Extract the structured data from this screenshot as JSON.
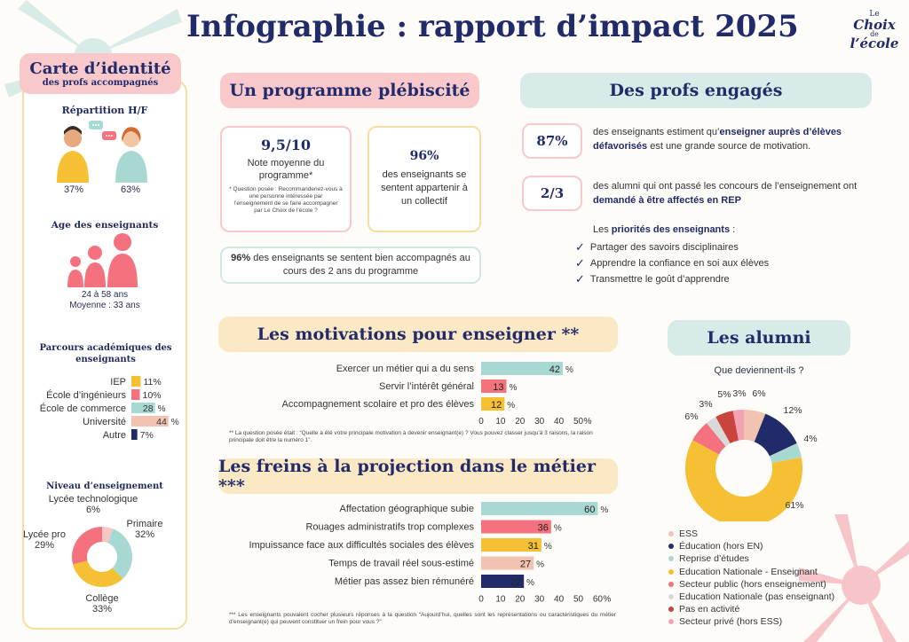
{
  "title": "Infographie : rapport d’impact 2025",
  "logo": {
    "line1": "Le",
    "line2": "Choix",
    "line3": "de",
    "line4": "l’école"
  },
  "identity": {
    "title": "Carte d’identité",
    "subtitle": "des profs accompagnés",
    "gender_title": "Répartition H/F",
    "male_pct": "37%",
    "female_pct": "63%",
    "age_title": "Age des enseignants",
    "age_range": "24 à 58 ans",
    "age_mean": "Moyenne : 33 ans",
    "acad_title": "Parcours académiques des enseignants",
    "level_title": "Niveau d’enseignement"
  },
  "programme": {
    "title": "Un programme plébiscité",
    "card1_value": "9,5/10",
    "card1_label": "Note moyenne du programme*",
    "card1_note": "* Question posée : Recommanderiez-vous à une personne intéressée par l’enseignement de se faire accompagner par Le Choix de l’école ?",
    "card2_value": "96%",
    "card2_label": "des enseignants se sentent appartenir à un collectif",
    "card3_bold": "96%",
    "card3_text": " des enseignants se sentent bien accompagnés au cours des 2 ans du programme"
  },
  "engages": {
    "title": "Des profs engagés",
    "stat1_value": "87%",
    "stat1_pre": "des enseignants estiment qu’",
    "stat1_bold": "enseigner auprès d’élèves défavorisés",
    "stat1_post": " est une grande source de motivation.",
    "stat2_value": "2/3",
    "stat2_pre": "des alumni qui ont passé les concours de l’enseignement ont ",
    "stat2_bold": "demandé à être affectés en REP",
    "prio_pre": "Les ",
    "prio_bold": "priorités des enseignants",
    "prio_post": " :",
    "priorities": [
      "Partager des savoirs disciplinaires",
      "Apprendre la confiance en soi aux élèves",
      "Transmettre le goût d’apprendre"
    ]
  },
  "motivations": {
    "title": "Les motivations pour enseigner **",
    "note": "** La question posée était : “Quelle a été votre principale motivation à devenir enseignant(e) ? Vous pouvez classer jusqu’à 3 raisons, la raison principale doit être la numéro 1”."
  },
  "freins": {
    "title": "Les freins à la projection dans le métier ***",
    "note": "*** Les enseignants pouvaient cocher plusieurs réponses à la question “Aujourd’hui, quelles sont les représentations ou caractéristiques du métier d’enseignant(e) qui peuvent constituer un frein pour vous ?”"
  },
  "alumni": {
    "title": "Les alumni",
    "subtitle": "Que deviennent-ils ?"
  },
  "colors": {
    "navy": "#222b6a",
    "teal": "#a8d8d2",
    "pink": "#f4727e",
    "yellow": "#f5c033",
    "peach": "#f2c3b1",
    "light_pink": "#f7c6c6",
    "cream": "#fbe8c4"
  },
  "chart_data": [
    {
      "type": "bar",
      "name": "Parcours académiques des enseignants",
      "categories": [
        "IEP",
        "École d’ingénieurs",
        "École de commerce",
        "Université",
        "Autre"
      ],
      "values": [
        11,
        10,
        28,
        44,
        7
      ],
      "value_labels": [
        "11%",
        "10%",
        "28",
        "44",
        "7%"
      ],
      "unit_suffix": [
        "",
        "",
        "%",
        "%",
        ""
      ],
      "colors": [
        "#f5c033",
        "#f4727e",
        "#a8d8d2",
        "#f2c3b1",
        "#222b6a"
      ]
    },
    {
      "type": "pie",
      "name": "Niveau d’enseignement",
      "categories": [
        "Lycée technologique",
        "Primaire",
        "Collège",
        "Lycée pro"
      ],
      "values": [
        6,
        32,
        33,
        29
      ],
      "value_labels": [
        "6%",
        "32%",
        "33%",
        "29%"
      ],
      "colors": [
        "#f7c6c6",
        "#a8d8d2",
        "#f5c033",
        "#f4727e"
      ]
    },
    {
      "type": "bar",
      "name": "Les motivations pour enseigner",
      "categories": [
        "Exercer un métier qui a du sens",
        "Servir l’intérêt général",
        "Accompagnement scolaire et pro des élèves"
      ],
      "values": [
        42,
        13,
        12
      ],
      "colors": [
        "#a8d8d2",
        "#f4727e",
        "#f5c033"
      ],
      "xlim": [
        0,
        50
      ],
      "ticks": [
        "0",
        "10",
        "20",
        "30",
        "40",
        "50"
      ],
      "unit": "%"
    },
    {
      "type": "bar",
      "name": "Les freins à la projection dans le métier",
      "categories": [
        "Affectation géographique subie",
        "Rouages administratifs trop complexes",
        "Impuissance face aux difficultés sociales des élèves",
        "Temps de travail réel sous-estimé",
        "Métier pas assez bien rémunéré"
      ],
      "values": [
        60,
        36,
        31,
        27,
        22
      ],
      "colors": [
        "#a8d8d2",
        "#f4727e",
        "#f5c033",
        "#f2c3b1",
        "#222b6a"
      ],
      "xlim": [
        0,
        60
      ],
      "ticks": [
        "0",
        "10",
        "20",
        "30",
        "40",
        "50",
        "60"
      ],
      "unit": "%"
    },
    {
      "type": "pie",
      "name": "Les alumni",
      "categories": [
        "ESS",
        "Éducation (hors EN)",
        "Reprise d’études",
        "Education Nationale - Enseignant",
        "Secteur public (hors enseignement)",
        "Education Nationale (pas enseignant)",
        "Pas en activité",
        "Secteur privé (hors ESS)"
      ],
      "values": [
        6,
        12,
        4,
        61,
        6,
        3,
        5,
        3
      ],
      "value_labels": [
        "6%",
        "12%",
        "4%",
        "61%",
        "6%",
        "3%",
        "5%",
        "3%"
      ],
      "colors": [
        "#f2c3b1",
        "#222b6a",
        "#a8d8d2",
        "#f5c033",
        "#f4727e",
        "#d9d9d9",
        "#c8443c",
        "#f4a3b4"
      ]
    }
  ]
}
